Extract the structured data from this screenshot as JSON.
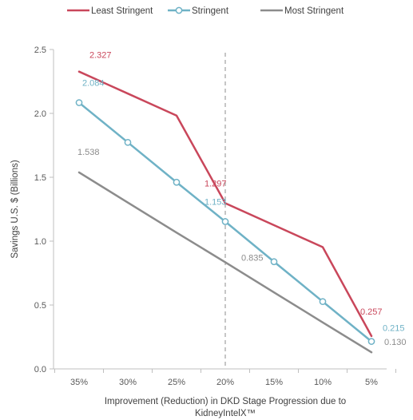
{
  "chart_data": {
    "type": "line",
    "title": "",
    "xlabel": "Improvement (Reduction) in DKD Stage Progression due to KidneyIntelX™",
    "xlabel_lines": [
      "Improvement (Reduction) in DKD Stage Progression due to",
      "KidneyIntelX™"
    ],
    "ylabel": "Savings U.S. $ (Billions)",
    "categories": [
      "35%",
      "30%",
      "25%",
      "20%",
      "15%",
      "10%",
      "5%"
    ],
    "ylim": [
      0,
      2.5
    ],
    "yticks": [
      "0.0",
      "0.5",
      "1.0",
      "1.5",
      "2.0",
      "2.5"
    ],
    "grid": false,
    "legend_position": "top",
    "reference_line": {
      "category": "20%",
      "style": "dashed"
    },
    "series": [
      {
        "name": "Least Stringent",
        "color": "#c9475b",
        "marker": "none",
        "values": [
          2.327,
          2.155,
          1.983,
          1.297,
          1.125,
          0.953,
          0.257
        ],
        "labels": [
          {
            "index": 0,
            "text": "2.327"
          },
          {
            "index": 3,
            "text": "1.297"
          },
          {
            "index": 6,
            "text": "0.257"
          }
        ]
      },
      {
        "name": "Stringent",
        "color": "#6fb2c6",
        "marker": "circle",
        "values": [
          2.084,
          1.773,
          1.461,
          1.153,
          0.839,
          0.527,
          0.215
        ],
        "labels": [
          {
            "index": 0,
            "text": "2.084"
          },
          {
            "index": 3,
            "text": "1.153"
          },
          {
            "index": 6,
            "text": "0.215"
          }
        ]
      },
      {
        "name": "Most Stringent",
        "color": "#8c8c8c",
        "marker": "none",
        "values": [
          1.538,
          1.302,
          1.067,
          0.835,
          0.599,
          0.364,
          0.13
        ],
        "labels": [
          {
            "index": 0,
            "text": "1.538"
          },
          {
            "index": 3,
            "text": "0.835"
          },
          {
            "index": 6,
            "text": "0.130"
          }
        ]
      }
    ]
  }
}
